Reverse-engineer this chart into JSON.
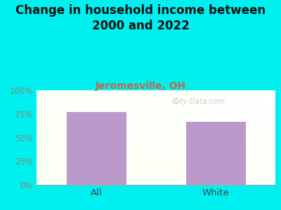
{
  "title": "Change in household income between\n2000 and 2022",
  "subtitle": "Jeromesville, OH",
  "categories": [
    "All",
    "White"
  ],
  "values": [
    77,
    67
  ],
  "bar_color": "#bb99cc",
  "figure_bg": "#00efef",
  "title_fontsize": 12,
  "subtitle_fontsize": 10,
  "subtitle_color": "#cc6644",
  "title_color": "#111111",
  "tick_label_color": "#888877",
  "xtick_label_color": "#444444",
  "ylim": [
    0,
    100
  ],
  "yticks": [
    0,
    25,
    50,
    75,
    100
  ],
  "ytick_labels": [
    "0%",
    "25%",
    "50%",
    "75%",
    "100%"
  ],
  "watermark": "City-Data.com"
}
